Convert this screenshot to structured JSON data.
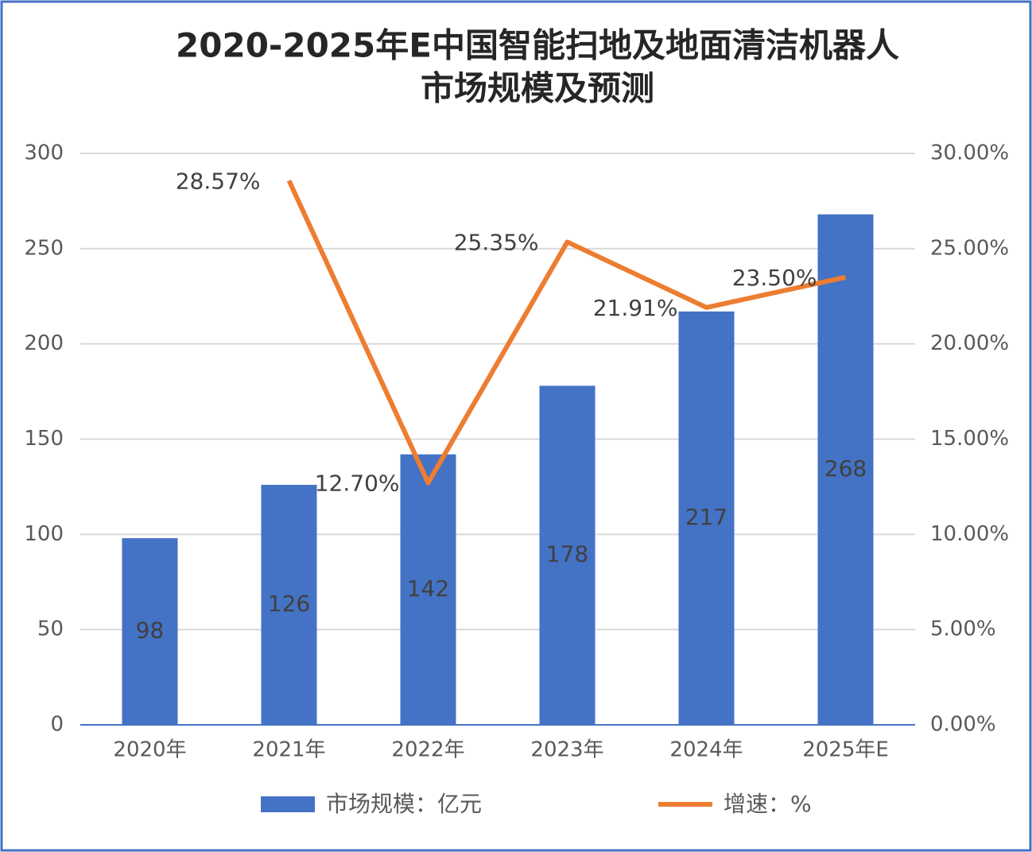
{
  "chart_data": {
    "type": "bar-line",
    "title": [
      "2020-2025年E中国智能扫地及地面清洁机器人",
      "市场规模及预测"
    ],
    "categories": [
      "2020年",
      "2021年",
      "2022年",
      "2023年",
      "2024年",
      "2025年E"
    ],
    "series": [
      {
        "name": "市场规模：亿元",
        "type": "bar",
        "color": "#4472c4",
        "values": [
          98,
          126,
          142,
          178,
          217,
          268
        ]
      },
      {
        "name": "增速：%",
        "type": "line",
        "axis": "y2",
        "color": "#ed7d31",
        "values": [
          null,
          28.57,
          12.7,
          25.35,
          21.91,
          23.5
        ],
        "value_labels": [
          null,
          "28.57%",
          "12.70%",
          "25.35%",
          "21.91%",
          "23.50%"
        ]
      }
    ],
    "ylim": [
      0,
      300
    ],
    "yticks": [
      0,
      50,
      100,
      150,
      200,
      250,
      300
    ],
    "y2lim": [
      0,
      30
    ],
    "y2ticks": [
      {
        "value": 0,
        "label": "0.00%"
      },
      {
        "value": 5,
        "label": "5.00%"
      },
      {
        "value": 10,
        "label": "10.00%"
      },
      {
        "value": 15,
        "label": "15.00%"
      },
      {
        "value": 20,
        "label": "20.00%"
      },
      {
        "value": 25,
        "label": "25.00%"
      },
      {
        "value": 30,
        "label": "30.00%"
      }
    ],
    "grid": true,
    "legend": "bottom"
  }
}
